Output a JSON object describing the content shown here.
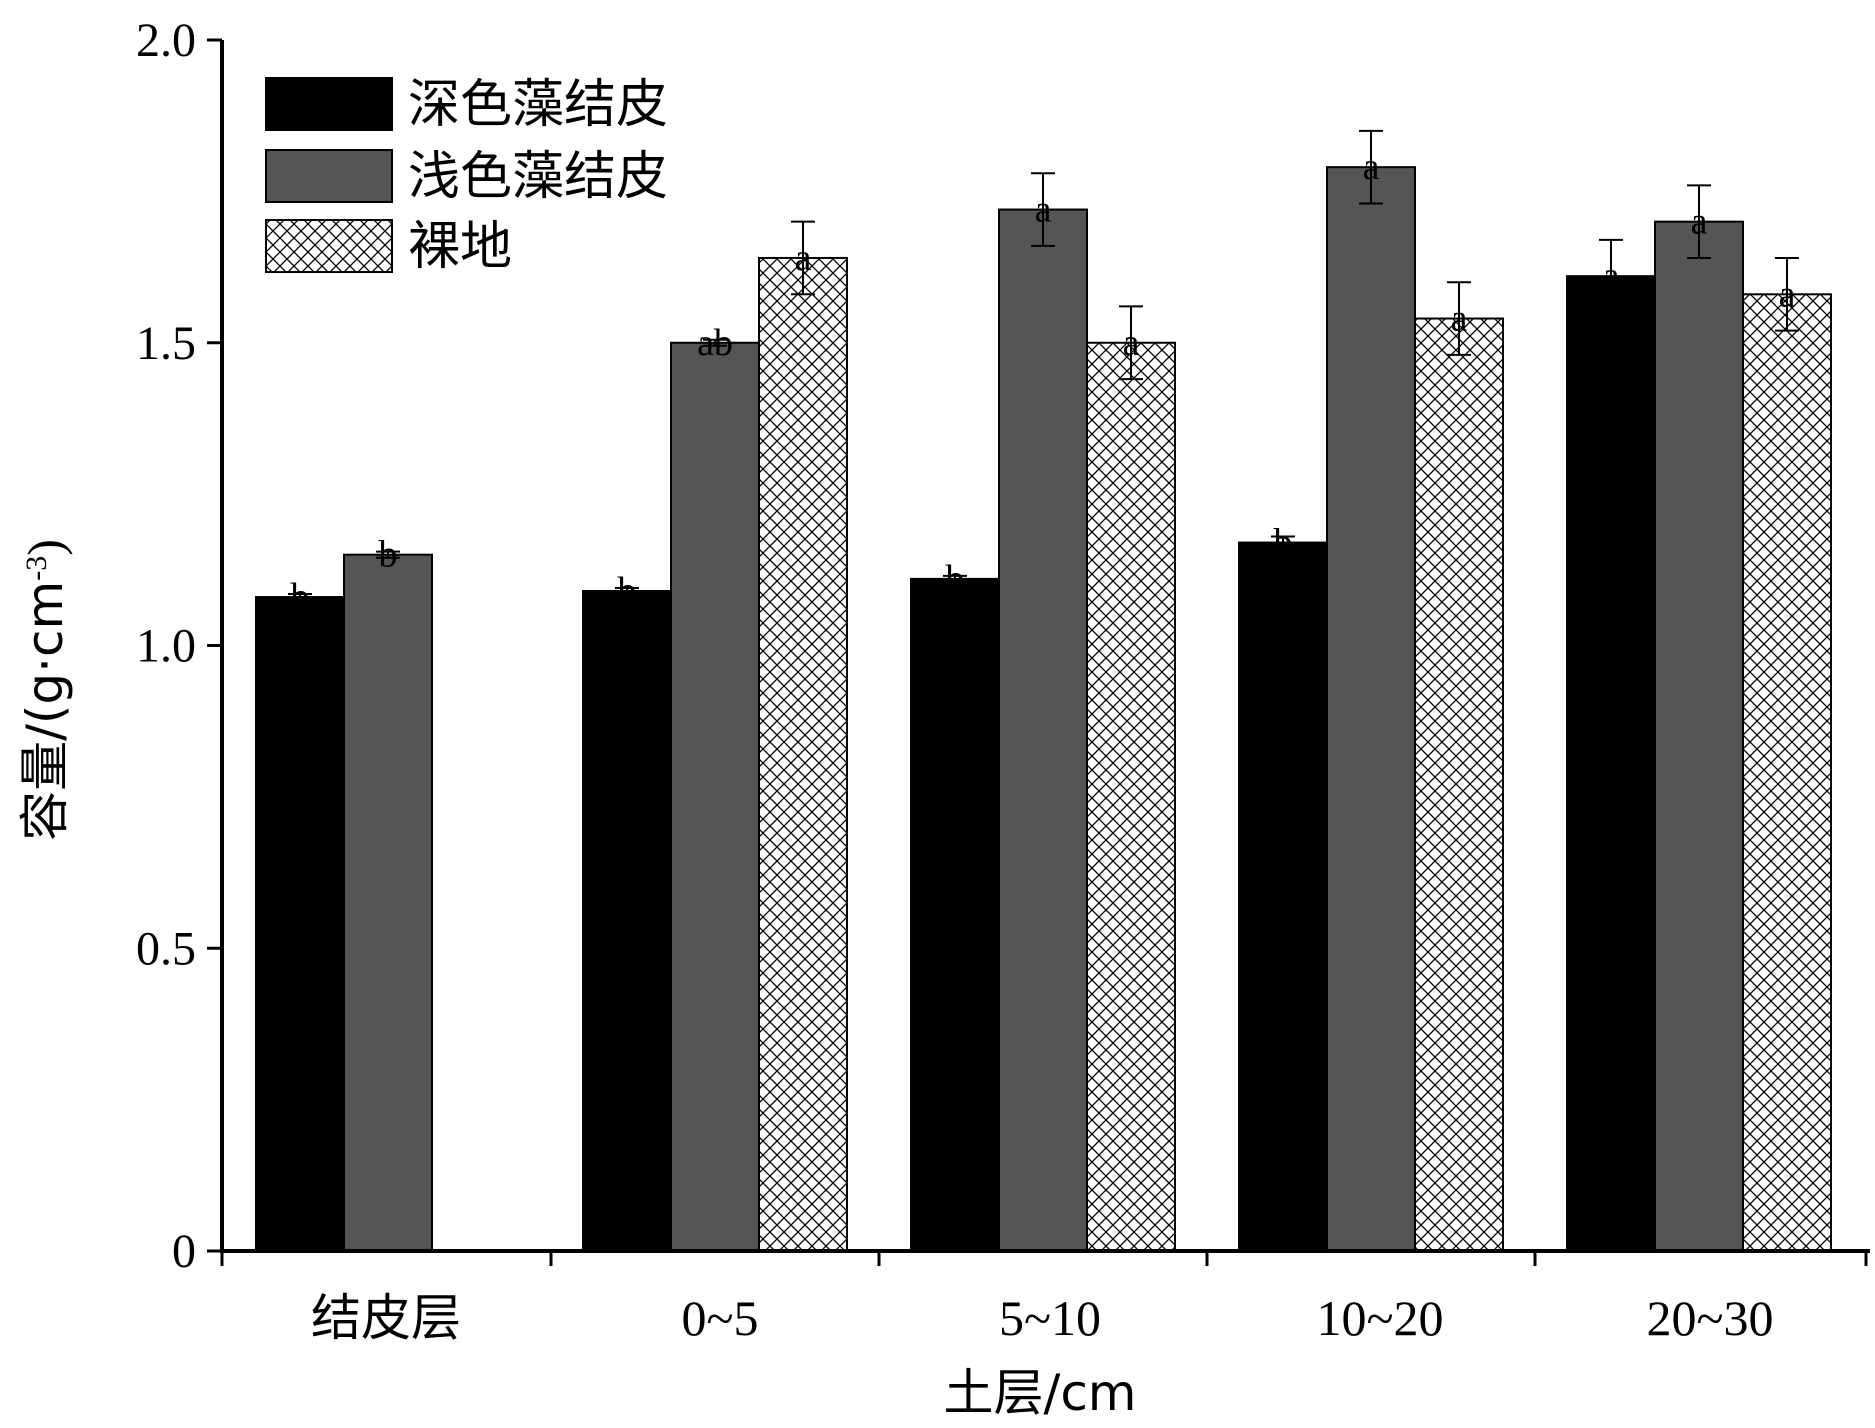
{
  "chart_data": {
    "type": "bar",
    "title": "",
    "xlabel": "土层/cm",
    "ylabel": "容量/(g·cm-3)",
    "ylabel_main": "容量/(g·cm",
    "ylabel_sup": "-3",
    "ylabel_close": ")",
    "ylim": [
      0,
      2.0
    ],
    "yticks": [
      0,
      0.5,
      1.0,
      1.5,
      2.0
    ],
    "ytick_labels": [
      "0",
      "0.5",
      "1.0",
      "1.5",
      "2.0"
    ],
    "categories": [
      "结皮层",
      "0~5",
      "5~10",
      "10~20",
      "20~30"
    ],
    "legend_position": "top-left",
    "grid": false,
    "series": [
      {
        "name": "深色藻结皮",
        "fill": "solid-black",
        "color": "#000000",
        "values": [
          1.08,
          1.09,
          1.11,
          1.17,
          1.61
        ],
        "errors": [
          0.005,
          0.005,
          0.005,
          0.01,
          0.06
        ],
        "letters": [
          "b",
          "b",
          "b",
          "b",
          "a"
        ]
      },
      {
        "name": "浅色藻结皮",
        "fill": "solid-gray",
        "color": "#555555",
        "values": [
          1.15,
          1.5,
          1.72,
          1.79,
          1.7
        ],
        "errors": [
          0.005,
          0.005,
          0.06,
          0.06,
          0.06
        ],
        "letters": [
          "b",
          "ab",
          "a",
          "a",
          "a"
        ]
      },
      {
        "name": "裸地",
        "fill": "crosshatch",
        "color": "#000000",
        "values": [
          null,
          1.64,
          1.5,
          1.54,
          1.58
        ],
        "errors": [
          null,
          0.06,
          0.06,
          0.06,
          0.06
        ],
        "letters": [
          null,
          "a",
          "a",
          "a",
          "a"
        ]
      }
    ]
  }
}
